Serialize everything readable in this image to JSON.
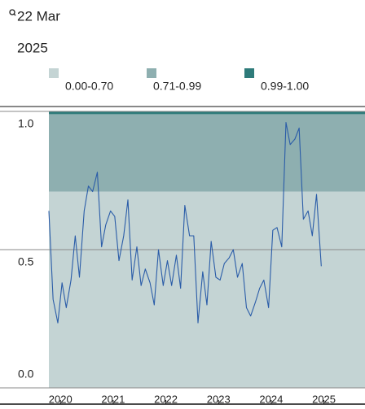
{
  "header": {
    "date": "22 Mar",
    "year": "2025"
  },
  "chart_data": {
    "type": "line",
    "bands": [
      {
        "label": "0.00-0.70",
        "from": 0,
        "to": 0.71,
        "color": "#c4d4d4"
      },
      {
        "label": "0.71-0.99",
        "from": 0.71,
        "to": 0.99,
        "color": "#8eafb0"
      },
      {
        "label": "0.99-1.00",
        "from": 0.99,
        "to": 1,
        "color": "#2e7b7a"
      }
    ],
    "x": [
      2019.78,
      2019.86,
      2019.95,
      2020.03,
      2020.11,
      2020.2,
      2020.28,
      2020.36,
      2020.45,
      2020.53,
      2020.61,
      2020.7,
      2020.78,
      2020.86,
      2020.95,
      2021.03,
      2021.11,
      2021.2,
      2021.28,
      2021.36,
      2021.45,
      2021.53,
      2021.61,
      2021.7,
      2021.78,
      2021.86,
      2021.95,
      2022.03,
      2022.11,
      2022.2,
      2022.28,
      2022.36,
      2022.45,
      2022.53,
      2022.61,
      2022.7,
      2022.78,
      2022.86,
      2022.95,
      2023.03,
      2023.11,
      2023.2,
      2023.28,
      2023.36,
      2023.45,
      2023.53,
      2023.61,
      2023.7,
      2023.78,
      2023.86,
      2023.95,
      2024.03,
      2024.11,
      2024.2,
      2024.28,
      2024.36,
      2024.45,
      2024.53,
      2024.61,
      2024.7,
      2024.78,
      2024.86,
      2024.95
    ],
    "values": [
      0.64,
      0.32,
      0.235,
      0.38,
      0.29,
      0.39,
      0.55,
      0.4,
      0.64,
      0.73,
      0.71,
      0.78,
      0.51,
      0.59,
      0.64,
      0.62,
      0.46,
      0.55,
      0.68,
      0.39,
      0.51,
      0.37,
      0.43,
      0.38,
      0.3,
      0.5,
      0.37,
      0.46,
      0.37,
      0.48,
      0.36,
      0.66,
      0.55,
      0.55,
      0.235,
      0.42,
      0.3,
      0.53,
      0.4,
      0.39,
      0.45,
      0.47,
      0.5,
      0.4,
      0.45,
      0.29,
      0.26,
      0.31,
      0.36,
      0.39,
      0.29,
      0.57,
      0.58,
      0.51,
      0.96,
      0.88,
      0.9,
      0.94,
      0.61,
      0.64,
      0.55,
      0.7,
      0.44
    ],
    "color": "#2a5ca8",
    "xlim": [
      2019.78,
      2025.78
    ],
    "xticks": [
      2020,
      2021,
      2022,
      2023,
      2024,
      2025
    ],
    "ylim": [
      0,
      1
    ],
    "yticks": [
      {
        "value": 0,
        "label": "0.0"
      },
      0.5,
      {
        "value": 1,
        "label": "1.0"
      }
    ],
    "grid": true
  }
}
